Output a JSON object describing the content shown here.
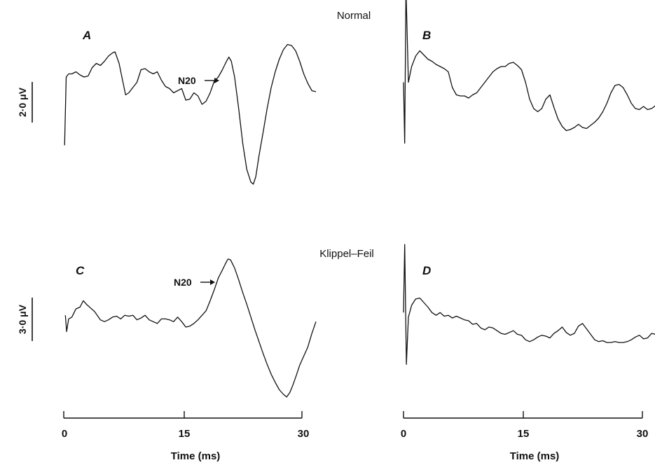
{
  "figure": {
    "top_title": "Normal",
    "bottom_title": "Klippel–Feil"
  },
  "colors": {
    "ink": "#111111",
    "background": "#ffffff"
  },
  "chart_data": [
    {
      "panel": "A",
      "type": "line",
      "group": "Normal",
      "scale_bar": "2·0 μV",
      "annotation": "N20",
      "annotation_at_ms": 20.3,
      "xlim": [
        0,
        31
      ],
      "x": [
        0.1,
        0.3,
        0.6,
        1.0,
        1.5,
        2.0,
        2.5,
        3.0,
        3.5,
        4.0,
        4.5,
        5.0,
        5.5,
        6.0,
        6.3,
        6.8,
        7.2,
        7.6,
        8.0,
        8.4,
        9.0,
        9.5,
        10.0,
        10.5,
        11.0,
        11.5,
        12.0,
        12.5,
        13.0,
        13.5,
        14.0,
        14.5,
        15.0,
        15.5,
        16.0,
        16.5,
        17.0,
        17.5,
        18.0,
        18.5,
        19.0,
        19.5,
        20.0,
        20.3,
        20.6,
        21.0,
        21.5,
        22.0,
        22.5,
        23.0,
        23.3,
        23.6,
        24.0,
        24.5,
        25.0,
        25.5,
        26.0,
        26.5,
        27.0,
        27.5,
        28.0,
        28.5,
        29.0,
        29.5,
        30.0,
        30.5,
        31.0
      ],
      "y": [
        -6.0,
        0.5,
        0.8,
        0.8,
        1.0,
        0.7,
        0.5,
        0.6,
        1.4,
        1.8,
        1.6,
        2.0,
        2.5,
        2.8,
        2.9,
        1.8,
        0.3,
        -1.2,
        -1.0,
        -0.6,
        0.0,
        1.2,
        1.3,
        1.0,
        0.8,
        1.0,
        0.2,
        -0.4,
        -0.6,
        -1.0,
        -0.8,
        -0.6,
        -1.7,
        -1.6,
        -1.0,
        -1.3,
        -2.1,
        -1.8,
        -1.0,
        0.1,
        0.5,
        1.2,
        2.0,
        2.4,
        2.0,
        0.5,
        -2.5,
        -5.8,
        -8.3,
        -9.5,
        -9.7,
        -9.0,
        -7.0,
        -4.8,
        -2.5,
        -0.5,
        1.0,
        2.2,
        3.1,
        3.6,
        3.5,
        3.0,
        2.0,
        0.8,
        -0.1,
        -0.8,
        -0.9
      ],
      "ylim": [
        -10.5,
        4.5
      ]
    },
    {
      "panel": "B",
      "type": "line",
      "group": "Normal",
      "xlim": [
        0,
        31
      ],
      "x": [
        0.0,
        0.15,
        0.3,
        0.6,
        1.0,
        1.5,
        2.0,
        2.5,
        3.0,
        3.5,
        4.0,
        4.5,
        5.0,
        5.5,
        6.0,
        6.5,
        7.0,
        7.5,
        8.0,
        8.5,
        9.0,
        9.5,
        10.0,
        10.5,
        11.0,
        11.5,
        12.0,
        12.5,
        13.0,
        13.5,
        14.0,
        14.5,
        15.0,
        15.5,
        16.0,
        16.5,
        17.0,
        17.5,
        18.0,
        18.5,
        19.0,
        19.5,
        20.0,
        20.5,
        21.0,
        21.5,
        22.0,
        22.5,
        23.0,
        23.5,
        24.0,
        24.5,
        25.0,
        25.5,
        26.0,
        26.5,
        27.0,
        27.5,
        28.0,
        28.5,
        29.0,
        29.5,
        30.0,
        30.5,
        31.0
      ],
      "y": [
        0.0,
        -5.8,
        9.0,
        0.0,
        1.5,
        2.5,
        3.0,
        2.6,
        2.2,
        2.0,
        1.7,
        1.5,
        1.3,
        1.0,
        -0.5,
        -1.2,
        -1.3,
        -1.3,
        -1.5,
        -1.2,
        -1.0,
        -0.5,
        0.0,
        0.5,
        1.0,
        1.3,
        1.5,
        1.5,
        1.8,
        1.9,
        1.6,
        1.2,
        0.0,
        -1.6,
        -2.5,
        -2.8,
        -2.5,
        -1.6,
        -1.2,
        -2.4,
        -3.5,
        -4.2,
        -4.6,
        -4.5,
        -4.3,
        -4.0,
        -4.3,
        -4.4,
        -4.1,
        -3.8,
        -3.4,
        -2.8,
        -2.0,
        -1.0,
        -0.3,
        -0.2,
        -0.5,
        -1.2,
        -2.0,
        -2.5,
        -2.6,
        -2.3,
        -2.6,
        -2.5,
        -2.2
      ],
      "ylim": [
        -10.5,
        4.5
      ]
    },
    {
      "panel": "C",
      "type": "line",
      "group": "Klippel–Feil",
      "scale_bar": "3·0 μV",
      "annotation": "N20",
      "annotation_at_ms": 20.2,
      "xlim": [
        0,
        31
      ],
      "x": [
        0.2,
        0.35,
        0.6,
        1.0,
        1.5,
        2.0,
        2.4,
        2.8,
        3.3,
        3.8,
        4.5,
        5.0,
        5.5,
        6.0,
        6.5,
        7.0,
        7.5,
        8.0,
        8.5,
        9.0,
        9.5,
        10.0,
        10.5,
        11.0,
        11.5,
        12.0,
        12.5,
        13.0,
        13.5,
        14.0,
        14.5,
        15.0,
        15.5,
        16.0,
        16.5,
        17.0,
        17.5,
        18.0,
        18.5,
        19.0,
        19.5,
        20.0,
        20.2,
        20.5,
        21.0,
        21.5,
        22.0,
        22.5,
        23.0,
        23.5,
        24.0,
        24.5,
        25.0,
        25.5,
        26.0,
        26.5,
        27.0,
        27.4,
        27.8,
        28.2,
        28.6,
        29.0,
        29.5,
        30.0,
        30.5,
        31.0
      ],
      "y": [
        -0.3,
        -2.1,
        -0.7,
        -0.5,
        0.4,
        0.6,
        1.3,
        0.9,
        0.5,
        0.1,
        -0.8,
        -1.0,
        -0.8,
        -0.5,
        -0.4,
        -0.7,
        -0.3,
        -0.4,
        -0.3,
        -0.8,
        -0.6,
        -0.3,
        -0.8,
        -1.0,
        -1.2,
        -0.7,
        -0.7,
        -0.8,
        -1.0,
        -0.5,
        -1.0,
        -1.6,
        -1.5,
        -1.2,
        -0.8,
        -0.3,
        0.2,
        1.3,
        2.5,
        3.8,
        4.7,
        5.6,
        5.9,
        5.8,
        4.9,
        3.6,
        2.2,
        0.9,
        -0.5,
        -1.9,
        -3.2,
        -4.5,
        -5.7,
        -6.8,
        -7.7,
        -8.5,
        -9.0,
        -9.3,
        -8.8,
        -7.9,
        -6.9,
        -5.8,
        -4.8,
        -3.8,
        -2.3,
        -1.0
      ],
      "ylim": [
        -10.7,
        5.5
      ]
    },
    {
      "panel": "D",
      "type": "line",
      "group": "Klippel–Feil",
      "xlim": [
        0,
        31
      ],
      "x": [
        0.0,
        0.15,
        0.35,
        0.6,
        1.0,
        1.5,
        2.0,
        2.5,
        3.0,
        3.5,
        4.0,
        4.5,
        5.0,
        5.5,
        6.0,
        6.5,
        7.0,
        7.5,
        8.0,
        8.5,
        9.0,
        9.5,
        10.0,
        10.5,
        11.0,
        11.5,
        12.0,
        12.5,
        13.0,
        13.5,
        14.0,
        14.5,
        15.0,
        15.5,
        16.0,
        16.5,
        17.0,
        17.5,
        18.0,
        18.5,
        19.0,
        19.5,
        20.0,
        20.5,
        21.0,
        21.5,
        22.0,
        22.5,
        23.0,
        23.5,
        24.0,
        24.5,
        25.0,
        25.5,
        26.0,
        26.5,
        27.0,
        27.5,
        28.0,
        28.5,
        29.0,
        29.5,
        30.0,
        30.5,
        31.0
      ],
      "y": [
        0.0,
        7.5,
        -5.7,
        -0.5,
        0.8,
        1.5,
        1.6,
        1.1,
        0.6,
        0.0,
        -0.3,
        0.0,
        -0.4,
        -0.3,
        -0.6,
        -0.4,
        -0.6,
        -0.8,
        -0.9,
        -1.3,
        -1.2,
        -1.7,
        -1.9,
        -1.6,
        -1.7,
        -2.0,
        -2.3,
        -2.4,
        -2.2,
        -2.0,
        -2.4,
        -2.5,
        -3.0,
        -3.2,
        -3.0,
        -2.7,
        -2.5,
        -2.6,
        -2.8,
        -2.3,
        -2.0,
        -1.6,
        -2.2,
        -2.5,
        -2.3,
        -1.5,
        -1.2,
        -1.8,
        -2.4,
        -3.0,
        -3.2,
        -3.1,
        -3.3,
        -3.3,
        -3.2,
        -3.3,
        -3.3,
        -3.2,
        -3.0,
        -2.7,
        -2.5,
        -2.9,
        -2.8,
        -2.3,
        -2.4
      ],
      "ylim": [
        -10.7,
        5.5
      ]
    }
  ],
  "axes": [
    {
      "ticks": [
        "0",
        "15",
        "30"
      ],
      "title": "Time (ms)"
    },
    {
      "ticks": [
        "0",
        "15",
        "30"
      ],
      "title": "Time (ms)"
    }
  ]
}
